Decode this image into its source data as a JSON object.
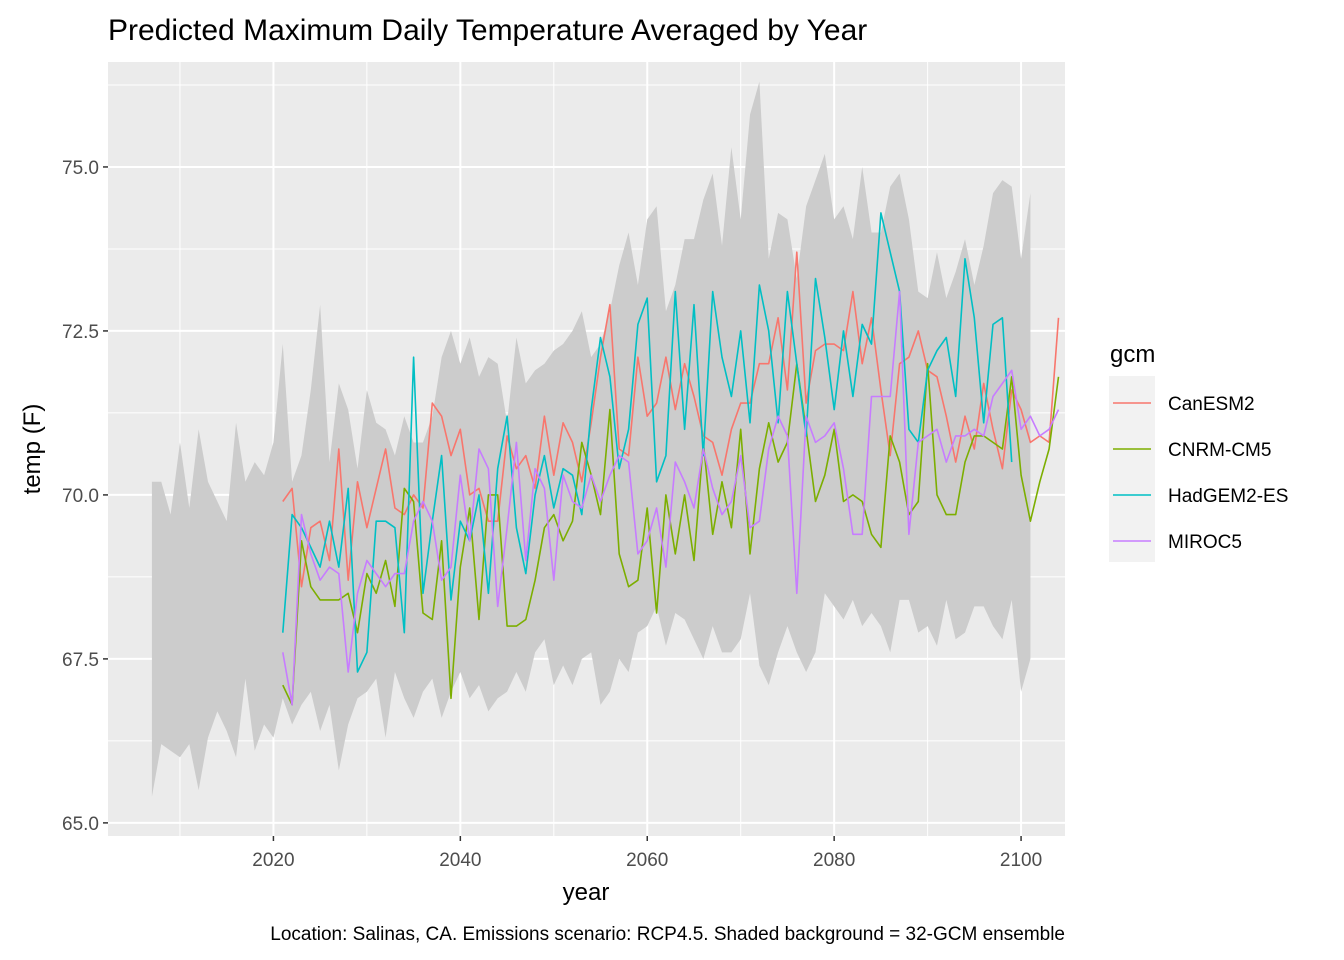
{
  "colors": {
    "panel_bg": "#ebebeb",
    "grid_major": "#ffffff",
    "ribbon": "#cccccc",
    "tick_text": "#4d4d4d",
    "legend_bg": "#f2f2f2"
  },
  "chart_data": {
    "type": "line",
    "title": "Predicted Maximum Daily Temperature Averaged by Year",
    "xlabel": "year",
    "ylabel": "temp (F)",
    "caption": "Location: Salinas, CA. Emissions scenario: RCP4.5. Shaded background = 32-GCM ensemble",
    "xlim": [
      2002.3,
      2104.7
    ],
    "ylim": [
      64.8,
      76.6
    ],
    "x_ticks": [
      2020,
      2040,
      2060,
      2080,
      2100
    ],
    "x_tick_labels": [
      "2020",
      "2040",
      "2060",
      "2080",
      "2100"
    ],
    "y_ticks": [
      65.0,
      67.5,
      70.0,
      72.5,
      75.0
    ],
    "y_tick_labels": [
      "65.0",
      "67.5",
      "70.0",
      "72.5",
      "75.0"
    ],
    "grid": true,
    "legend": {
      "title": "gcm",
      "position": "right"
    },
    "ribbon": {
      "name": "32-GCM ensemble",
      "x_start": 2007,
      "upper": [
        70.2,
        70.2,
        69.7,
        70.8,
        69.8,
        71.0,
        70.2,
        69.9,
        69.6,
        71.1,
        70.2,
        70.5,
        70.3,
        70.8,
        72.3,
        70.2,
        70.6,
        71.6,
        72.9,
        70.5,
        71.7,
        71.3,
        70.4,
        71.6,
        71.1,
        71.0,
        70.6,
        71.2,
        70.8,
        70.8,
        71.2,
        72.1,
        72.5,
        72.0,
        72.4,
        71.8,
        72.1,
        72.0,
        71.1,
        72.4,
        71.7,
        71.9,
        72.0,
        72.2,
        72.3,
        72.5,
        72.8,
        72.1,
        72.3,
        72.8,
        73.5,
        74.0,
        73.2,
        74.2,
        74.4,
        72.8,
        73.2,
        73.9,
        73.9,
        74.5,
        74.9,
        73.8,
        75.3,
        74.2,
        75.8,
        76.3,
        73.6,
        74.3,
        74.2,
        73.3,
        74.4,
        74.8,
        75.2,
        74.2,
        74.4,
        73.9,
        75.0,
        74.0,
        74.0,
        74.7,
        74.9,
        74.2,
        73.1,
        73.0,
        73.7,
        73.0,
        73.4,
        73.9,
        73.2,
        73.8,
        74.6,
        74.8,
        74.7,
        73.6,
        74.6
      ],
      "lower": [
        65.4,
        66.2,
        66.1,
        66.0,
        66.2,
        65.5,
        66.3,
        66.7,
        66.4,
        66.0,
        67.2,
        66.1,
        66.5,
        66.3,
        66.9,
        66.5,
        66.8,
        67.0,
        66.4,
        66.8,
        65.8,
        66.5,
        66.9,
        67.0,
        67.2,
        66.3,
        67.3,
        66.9,
        66.6,
        67.0,
        67.2,
        66.6,
        67.0,
        67.3,
        66.9,
        67.1,
        66.7,
        66.9,
        67.0,
        67.3,
        67.0,
        67.6,
        67.8,
        67.1,
        67.4,
        67.1,
        67.5,
        67.6,
        66.8,
        67.0,
        67.5,
        67.3,
        67.9,
        68.0,
        68.3,
        67.7,
        68.2,
        68.1,
        67.8,
        67.5,
        68.0,
        67.6,
        67.6,
        67.8,
        68.5,
        67.4,
        67.1,
        67.6,
        68.0,
        67.6,
        67.3,
        67.6,
        68.5,
        68.3,
        68.1,
        68.4,
        68.0,
        68.2,
        68.0,
        67.6,
        68.4,
        68.4,
        67.9,
        68.0,
        67.7,
        68.4,
        67.8,
        67.9,
        68.3,
        68.3,
        68.0,
        67.8,
        68.4,
        67.0,
        67.5
      ]
    },
    "series": [
      {
        "name": "CanESM2",
        "color": "#F8766D",
        "x_start": 2021,
        "values": [
          69.9,
          70.1,
          68.6,
          69.5,
          69.6,
          69.0,
          70.7,
          68.7,
          70.2,
          69.5,
          70.1,
          70.7,
          69.8,
          69.7,
          70.0,
          69.8,
          71.4,
          71.2,
          70.6,
          71.0,
          70.0,
          70.1,
          69.6,
          69.6,
          70.9,
          70.4,
          70.6,
          70.1,
          71.2,
          70.3,
          71.1,
          70.8,
          70.2,
          71.1,
          72.1,
          72.9,
          70.7,
          70.6,
          72.1,
          71.2,
          71.4,
          72.1,
          71.3,
          72.0,
          71.5,
          70.9,
          70.8,
          70.3,
          71.0,
          71.4,
          71.4,
          72.0,
          72.0,
          72.7,
          71.6,
          73.7,
          71.4,
          72.2,
          72.3,
          72.3,
          72.2,
          73.1,
          72.0,
          72.7,
          71.6,
          70.6,
          72.0,
          72.1,
          72.5,
          71.9,
          71.8,
          71.2,
          70.5,
          71.2,
          70.7,
          71.7,
          71.0,
          70.4,
          71.6,
          71.3,
          70.8,
          70.9,
          70.8,
          72.7
        ]
      },
      {
        "name": "CNRM-CM5",
        "color": "#7CAE00",
        "x_start": 2021,
        "values": [
          67.1,
          66.8,
          69.3,
          68.6,
          68.4,
          68.4,
          68.4,
          68.5,
          67.9,
          68.8,
          68.5,
          69.0,
          68.3,
          70.1,
          69.9,
          68.2,
          68.1,
          69.3,
          66.9,
          68.9,
          69.8,
          68.1,
          70.0,
          70.0,
          68.0,
          68.0,
          68.1,
          68.7,
          69.5,
          69.7,
          69.3,
          69.6,
          70.8,
          70.3,
          69.7,
          71.3,
          69.1,
          68.6,
          68.7,
          69.8,
          68.2,
          70.0,
          69.1,
          70.0,
          69.0,
          70.8,
          69.4,
          70.2,
          69.5,
          71.0,
          69.1,
          70.4,
          71.1,
          70.5,
          70.8,
          72.0,
          71.0,
          69.9,
          70.3,
          71.0,
          69.9,
          70.0,
          69.9,
          69.4,
          69.2,
          70.9,
          70.5,
          69.7,
          69.9,
          72.0,
          70.0,
          69.7,
          69.7,
          70.5,
          70.9,
          70.9,
          70.8,
          70.7,
          71.8,
          70.3,
          69.6,
          70.2,
          70.7,
          71.8
        ]
      },
      {
        "name": "HadGEM2-ES",
        "color": "#00BFC4",
        "x_start": 2021,
        "values": [
          67.9,
          69.7,
          69.5,
          69.2,
          68.9,
          69.6,
          68.9,
          70.1,
          67.3,
          67.6,
          69.6,
          69.6,
          69.5,
          67.9,
          72.1,
          68.5,
          69.6,
          70.6,
          68.4,
          69.6,
          69.3,
          70.0,
          68.5,
          70.4,
          71.2,
          69.5,
          68.8,
          70.0,
          70.6,
          69.8,
          70.4,
          70.3,
          69.7,
          71.3,
          72.4,
          71.8,
          70.4,
          71.0,
          72.6,
          73.0,
          70.2,
          70.6,
          73.1,
          71.0,
          72.9,
          70.6,
          73.1,
          72.1,
          71.5,
          72.5,
          71.1,
          73.2,
          72.5,
          71.1,
          73.1,
          72.0,
          70.9,
          73.3,
          72.4,
          71.3,
          72.5,
          71.5,
          72.6,
          72.3,
          74.3,
          73.7,
          73.1,
          71.0,
          70.8,
          71.9,
          72.2,
          72.4,
          71.5,
          73.6,
          72.7,
          71.1,
          72.6,
          72.7,
          70.5
        ]
      },
      {
        "name": "MIROC5",
        "color": "#C77CFF",
        "x_start": 2021,
        "values": [
          67.6,
          66.8,
          69.7,
          69.1,
          68.7,
          68.9,
          68.8,
          67.3,
          68.5,
          69.0,
          68.8,
          68.6,
          68.8,
          68.8,
          69.6,
          69.9,
          69.6,
          68.7,
          68.9,
          70.3,
          69.3,
          70.7,
          70.4,
          68.3,
          69.5,
          70.8,
          69.0,
          70.4,
          70.1,
          68.7,
          70.3,
          69.9,
          69.8,
          70.3,
          69.9,
          70.3,
          70.6,
          70.5,
          69.1,
          69.3,
          69.8,
          68.9,
          70.5,
          70.2,
          69.8,
          70.7,
          70.1,
          69.7,
          69.9,
          70.6,
          69.5,
          69.6,
          70.7,
          71.2,
          70.9,
          68.5,
          71.2,
          70.8,
          70.9,
          71.1,
          70.4,
          69.4,
          69.4,
          71.5,
          71.5,
          71.5,
          73.1,
          69.4,
          70.8,
          70.9,
          71.0,
          70.5,
          70.9,
          70.9,
          71.0,
          70.9,
          71.5,
          71.7,
          71.9,
          71.0,
          71.2,
          70.9,
          71.0,
          71.3
        ]
      }
    ]
  }
}
